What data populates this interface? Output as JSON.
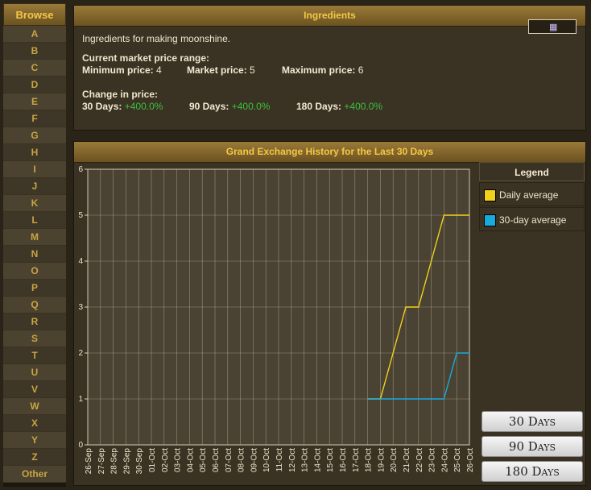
{
  "sidebar": {
    "title": "Browse",
    "letters": [
      "A",
      "B",
      "C",
      "D",
      "E",
      "F",
      "G",
      "H",
      "I",
      "J",
      "K",
      "L",
      "M",
      "N",
      "O",
      "P",
      "Q",
      "R",
      "S",
      "T",
      "U",
      "V",
      "W",
      "X",
      "Y",
      "Z",
      "Other"
    ]
  },
  "info": {
    "title": "Ingredients",
    "description": "Ingredients for making moonshine.",
    "price_range_label": "Current market price range:",
    "min_label": "Minimum price:",
    "min_value": "4",
    "market_label": "Market price:",
    "market_value": "5",
    "max_label": "Maximum price:",
    "max_value": "6",
    "change_label": "Change in price:",
    "d30_label": "30 Days:",
    "d30_value": "+400.0%",
    "d90_label": "90 Days:",
    "d90_value": "+400.0%",
    "d180_label": "180 Days:",
    "d180_value": "+400.0%"
  },
  "history": {
    "title": "Grand Exchange History for the Last 30 Days",
    "legend_title": "Legend",
    "buttons": [
      "30 Days",
      "90 Days",
      "180 Days"
    ]
  },
  "colors": {
    "daily": "#f2d21b",
    "avg30": "#19aadc",
    "accent": "#f3c846"
  },
  "chart_data": {
    "type": "line",
    "x": [
      "26-Sep",
      "27-Sep",
      "28-Sep",
      "29-Sep",
      "30-Sep",
      "01-Oct",
      "02-Oct",
      "03-Oct",
      "04-Oct",
      "05-Oct",
      "06-Oct",
      "07-Oct",
      "08-Oct",
      "09-Oct",
      "10-Oct",
      "11-Oct",
      "12-Oct",
      "13-Oct",
      "14-Oct",
      "15-Oct",
      "16-Oct",
      "17-Oct",
      "18-Oct",
      "19-Oct",
      "20-Oct",
      "21-Oct",
      "22-Oct",
      "23-Oct",
      "24-Oct",
      "25-Oct",
      "26-Oct"
    ],
    "series": [
      {
        "name": "Daily average",
        "values": [
          null,
          null,
          null,
          null,
          null,
          null,
          null,
          null,
          null,
          null,
          null,
          null,
          null,
          null,
          null,
          null,
          null,
          null,
          null,
          null,
          null,
          null,
          1,
          1,
          2,
          3,
          3,
          4,
          5,
          5,
          5
        ]
      },
      {
        "name": "30-day average",
        "values": [
          null,
          null,
          null,
          null,
          null,
          null,
          null,
          null,
          null,
          null,
          null,
          null,
          null,
          null,
          null,
          null,
          null,
          null,
          null,
          null,
          null,
          null,
          1,
          1,
          1,
          1,
          1,
          1,
          1,
          2,
          2
        ]
      }
    ],
    "ylim": [
      0,
      6
    ],
    "yticks": [
      0,
      1,
      2,
      3,
      4,
      5,
      6
    ],
    "grid": true,
    "legend": "right"
  }
}
